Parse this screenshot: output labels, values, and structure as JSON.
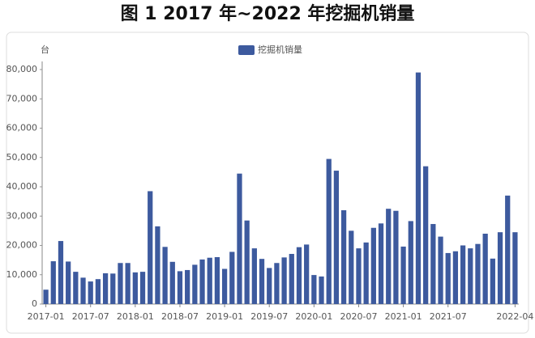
{
  "chart_data": {
    "type": "bar",
    "title": "图 1 2017 年~2022 年挖掘机销量",
    "y_unit": "台",
    "categories": [
      "2017-01",
      null,
      null,
      null,
      null,
      null,
      "2017-07",
      null,
      null,
      null,
      null,
      null,
      "2018-01",
      null,
      null,
      null,
      null,
      null,
      "2018-07",
      null,
      null,
      null,
      null,
      null,
      "2019-01",
      null,
      null,
      null,
      null,
      null,
      "2019-07",
      null,
      null,
      null,
      null,
      null,
      "2020-01",
      null,
      null,
      null,
      null,
      null,
      "2020-07",
      null,
      null,
      null,
      null,
      null,
      "2021-01",
      null,
      null,
      null,
      null,
      null,
      "2021-07",
      null,
      null,
      null,
      null,
      null,
      null,
      null,
      null,
      "2022-04"
    ],
    "series": [
      {
        "name": "挖掘机销量",
        "color": "#3d5a9e",
        "values": [
          4900,
          14600,
          21500,
          14500,
          11000,
          9000,
          7700,
          8500,
          10500,
          10400,
          14000,
          14000,
          10800,
          11000,
          38500,
          26500,
          19500,
          14400,
          11200,
          11600,
          13400,
          15200,
          15800,
          16000,
          12000,
          17800,
          44500,
          28500,
          19000,
          15400,
          12300,
          14000,
          15900,
          17100,
          19400,
          20300,
          9900,
          9400,
          49500,
          45500,
          32000,
          25000,
          19000,
          21000,
          26000,
          27500,
          32500,
          31800,
          19600,
          28300,
          79000,
          47000,
          27300,
          23000,
          17400,
          18000,
          20000,
          19000,
          20500,
          24000,
          15500,
          24500,
          37000,
          24500
        ]
      }
    ],
    "ylim": [
      0,
      80000
    ],
    "yticks": [
      0,
      {
        "value": 10000,
        "label": "10,000"
      },
      {
        "value": 20000,
        "label": "20,000"
      },
      {
        "value": 30000,
        "label": "30,000"
      },
      {
        "value": 40000,
        "label": "40,000"
      },
      {
        "value": 50000,
        "label": "50,000"
      },
      {
        "value": 60000,
        "label": "60,000"
      },
      {
        "value": 70000,
        "label": "70,000"
      },
      {
        "value": 80000,
        "label": "80,000"
      }
    ],
    "grid": false
  }
}
